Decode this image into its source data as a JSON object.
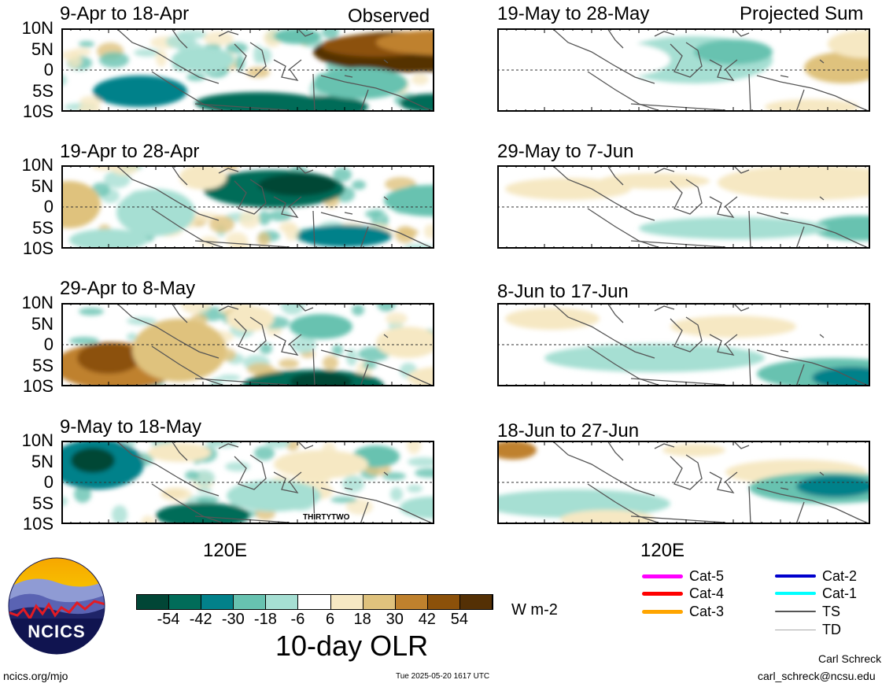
{
  "header": {
    "left_tag": "Observed",
    "right_tag": "Projected Sum"
  },
  "lat_labels": [
    "10N",
    "5N",
    "0",
    "5S",
    "10S"
  ],
  "panels_left": [
    {
      "title": "9-Apr to 18-Apr"
    },
    {
      "title": "19-Apr to 28-Apr"
    },
    {
      "title": "29-Apr to 8-May"
    },
    {
      "title": "9-May to 18-May"
    }
  ],
  "panels_right": [
    {
      "title": "19-May to 28-May"
    },
    {
      "title": "29-May to 7-Jun"
    },
    {
      "title": "8-Jun to 17-Jun"
    },
    {
      "title": "18-Jun to 27-Jun"
    }
  ],
  "x_axis_label": "120E",
  "storm_label": "THIRTYTWO",
  "colorbar": {
    "colors": [
      "#014636",
      "#016c59",
      "#02818a",
      "#67c2b0",
      "#a6dfd3",
      "#ffffff",
      "#f6e8c3",
      "#dfc27d",
      "#bf812d",
      "#8c510a",
      "#543005"
    ],
    "ticks": [
      "-54",
      "-42",
      "-30",
      "-18",
      "-6",
      "6",
      "18",
      "30",
      "42",
      "54"
    ],
    "units": "W m-2",
    "title": "10-day OLR"
  },
  "legend": {
    "items": [
      {
        "label": "Cat-5",
        "color": "#ff00ff",
        "weight": 5
      },
      {
        "label": "Cat-4",
        "color": "#ff0000",
        "weight": 5
      },
      {
        "label": "Cat-3",
        "color": "#ffa500",
        "weight": 5
      },
      {
        "label": "Cat-2",
        "color": "#0000cd",
        "weight": 4
      },
      {
        "label": "Cat-1",
        "color": "#00ffff",
        "weight": 4
      },
      {
        "label": "TS",
        "color": "#555555",
        "weight": 2
      },
      {
        "label": "TD",
        "color": "#aaaaaa",
        "weight": 1
      }
    ]
  },
  "logo": {
    "text": "NCICS"
  },
  "footer": {
    "url": "ncics.org/mjo",
    "timestamp": "Tue 2025-05-20 1617 UTC",
    "author": "Carl Schreck",
    "email": "carl_schreck@ncsu.edu"
  }
}
